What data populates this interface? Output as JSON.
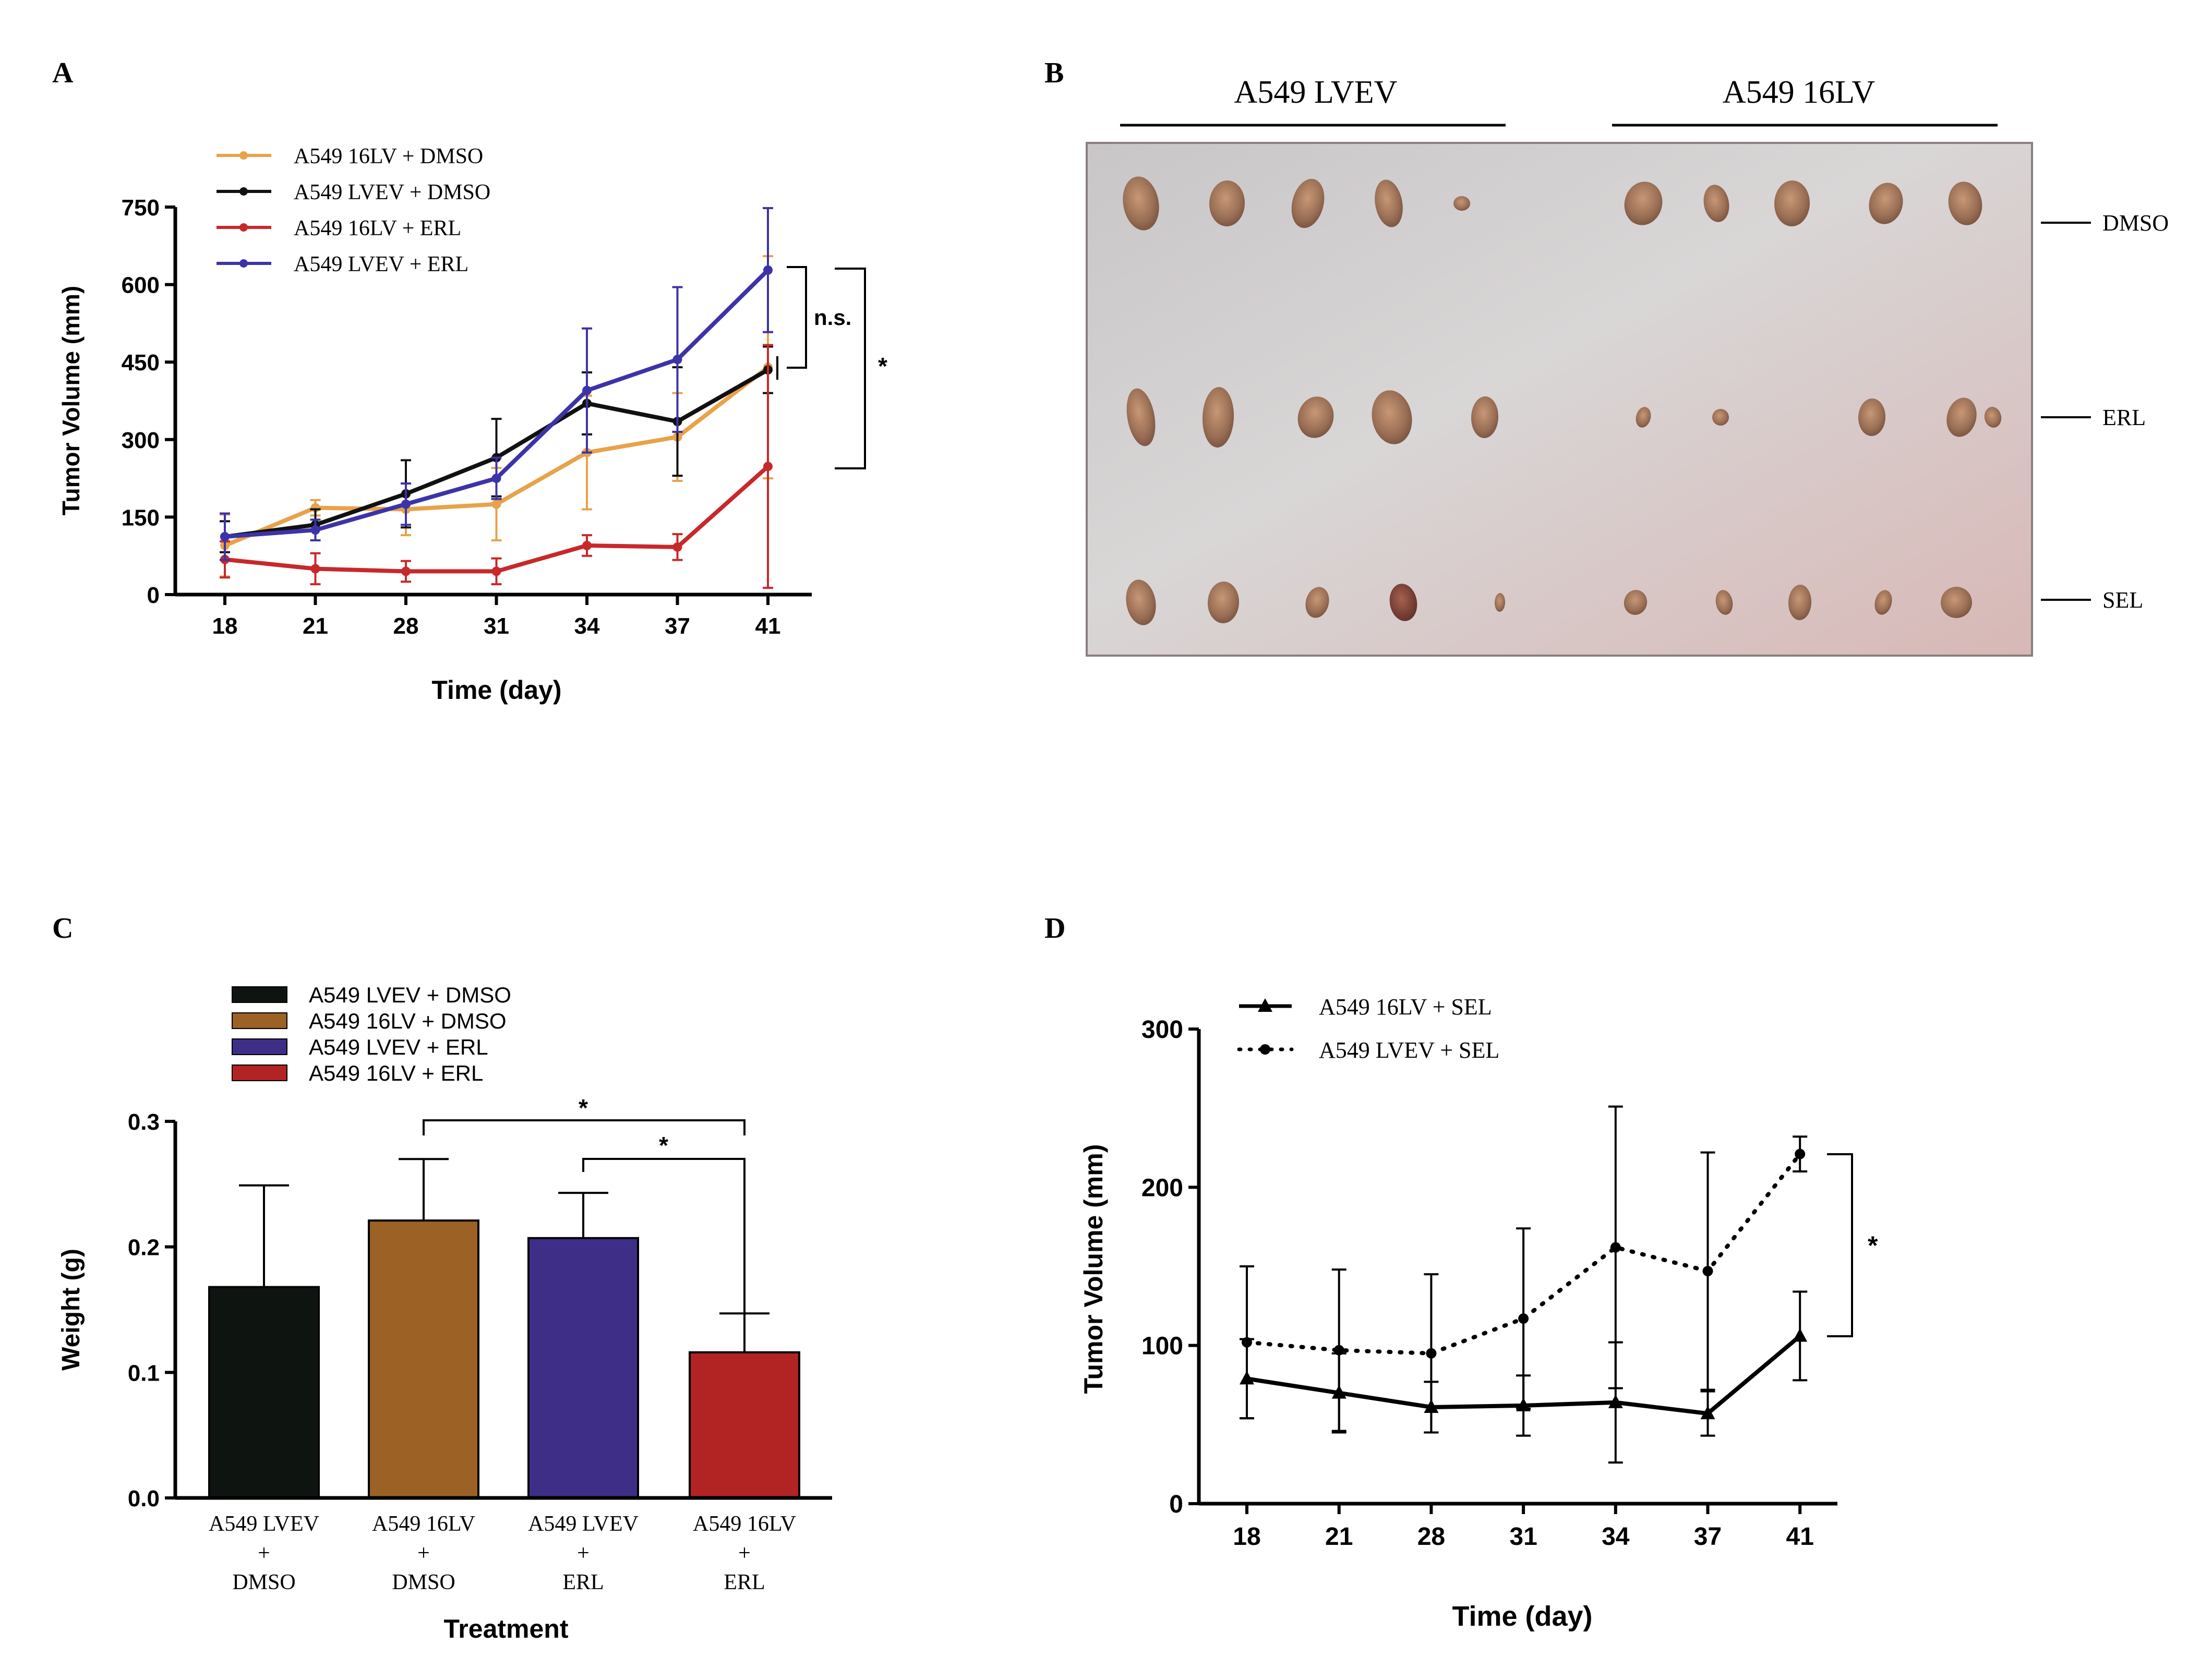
{
  "panel_labels": {
    "a": "A",
    "b": "B",
    "c": "C",
    "d": "D"
  },
  "colors": {
    "orange": "#E8A24A",
    "black": "#111111",
    "red": "#C8282A",
    "blue": "#3D33A8",
    "bar_black": "#0E1510",
    "bar_brown": "#9B6125",
    "bar_blue": "#3E2E88",
    "bar_red": "#B22423"
  },
  "chart_data": [
    {
      "id": "A",
      "type": "line",
      "xlabel": "Time (day)",
      "ylabel": "Tumor Volume (mm)",
      "categories": [
        "18",
        "21",
        "28",
        "31",
        "34",
        "37",
        "41"
      ],
      "ylim": [
        0,
        750
      ],
      "yticks": [
        "0",
        "150",
        "300",
        "450",
        "600",
        "750"
      ],
      "series": [
        {
          "name": "A549 16LV + DMSO",
          "color": "#E8A24A",
          "values": [
            95,
            168,
            165,
            175,
            275,
            305,
            440
          ],
          "errors": [
            60,
            15,
            50,
            70,
            110,
            85,
            215
          ]
        },
        {
          "name": "A549 LVEV + DMSO",
          "color": "#111111",
          "values": [
            112,
            135,
            195,
            265,
            370,
            335,
            435
          ],
          "errors": [
            30,
            30,
            65,
            75,
            60,
            105,
            45
          ]
        },
        {
          "name": "A549 16LV + ERL",
          "color": "#C8282A",
          "values": [
            68,
            50,
            45,
            45,
            95,
            92,
            248
          ],
          "errors": [
            35,
            30,
            20,
            25,
            20,
            25,
            235
          ]
        },
        {
          "name": "A549 LVEV + ERL",
          "color": "#3D33A8",
          "values": [
            112,
            125,
            175,
            225,
            395,
            455,
            628
          ],
          "errors": [
            45,
            20,
            40,
            40,
            120,
            140,
            120
          ]
        }
      ],
      "annotations": [
        "n.s.",
        "*"
      ]
    },
    {
      "id": "C",
      "type": "bar",
      "xlabel": "Treatment",
      "ylabel": "Weight (g)",
      "categories": [
        [
          "A549 LVEV",
          "+",
          "DMSO"
        ],
        [
          "A549 16LV",
          "+",
          "DMSO"
        ],
        [
          "A549 LVEV",
          "+",
          "ERL"
        ],
        [
          "A549 16LV",
          "+",
          "ERL"
        ]
      ],
      "legend": [
        "A549 LVEV + DMSO",
        "A549 16LV + DMSO",
        "A549 LVEV + ERL",
        "A549 16LV + ERL"
      ],
      "values": [
        0.168,
        0.221,
        0.207,
        0.116
      ],
      "errors": [
        0.081,
        0.049,
        0.036,
        0.031
      ],
      "ylim": [
        0,
        0.3
      ],
      "yticks": [
        "0.0",
        "0.1",
        "0.2",
        "0.3"
      ],
      "annotations": [
        "*",
        "*"
      ]
    },
    {
      "id": "D",
      "type": "line",
      "xlabel": "Time (day)",
      "ylabel": "Tumor Volume (mm)",
      "categories": [
        "18",
        "21",
        "28",
        "31",
        "34",
        "37",
        "41"
      ],
      "ylim": [
        0,
        300
      ],
      "yticks": [
        "0",
        "100",
        "200",
        "300"
      ],
      "series": [
        {
          "name": "A549 16LV + SEL",
          "style": "solid",
          "marker": "triangle",
          "values": [
            79,
            70,
            61,
            62,
            64,
            57,
            106
          ],
          "errors": [
            25,
            25,
            16,
            19,
            38,
            14,
            28
          ]
        },
        {
          "name": "A549 LVEV + SEL",
          "style": "dotted",
          "marker": "circle",
          "values": [
            102,
            97,
            95,
            117,
            162,
            147,
            221
          ],
          "errors": [
            48,
            51,
            50,
            57,
            89,
            75,
            11
          ]
        }
      ],
      "annotations": [
        "*"
      ]
    }
  ],
  "photo": {
    "group_labels": [
      "A549 LVEV",
      "A549 16LV"
    ],
    "row_labels": [
      "DMSO",
      "ERL",
      "SEL"
    ]
  }
}
